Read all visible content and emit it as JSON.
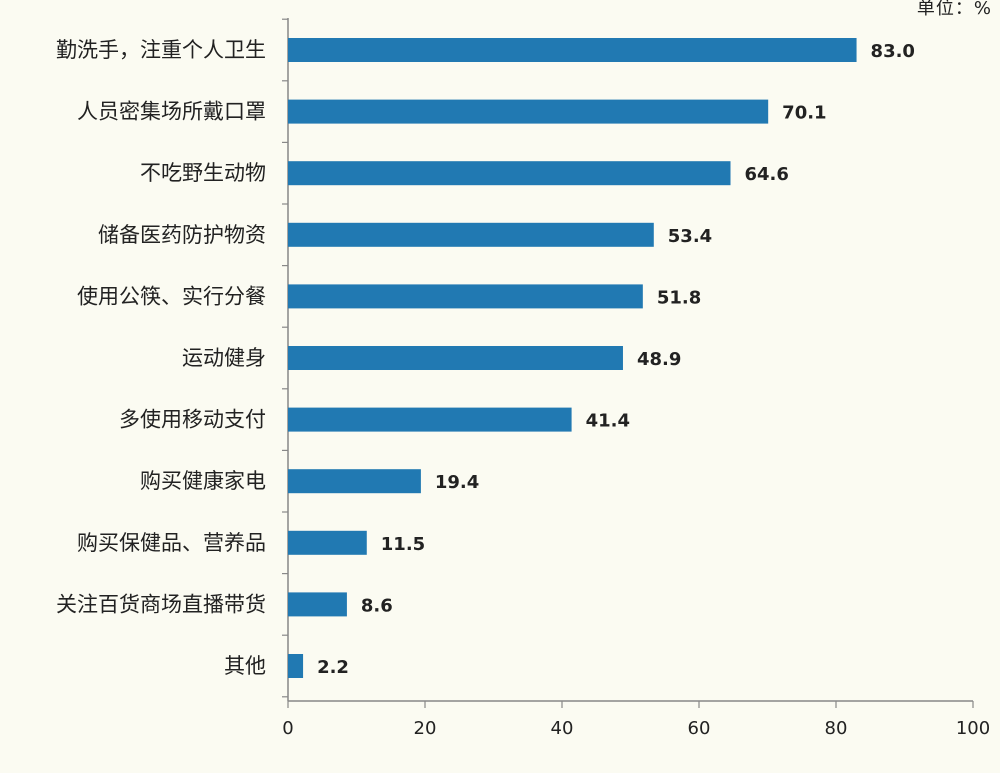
{
  "chart_data": {
    "type": "bar",
    "orientation": "horizontal",
    "unit": "单位：%",
    "categories": [
      "勤洗手，注重个人卫生",
      "人员密集场所戴口罩",
      "不吃野生动物",
      "储备医药防护物资",
      "使用公筷、实行分餐",
      "运动健身",
      "多使用移动支付",
      "购买健康家电",
      "购买保健品、营养品",
      "关注百货商场直播带货",
      "其他"
    ],
    "values": [
      83.0,
      70.1,
      64.6,
      53.4,
      51.8,
      48.9,
      41.4,
      19.4,
      11.5,
      8.6,
      2.2
    ],
    "value_labels": [
      "83.0",
      "70.1",
      "64.6",
      "53.4",
      "51.8",
      "48.9",
      "41.4",
      "19.4",
      "11.5",
      "8.6",
      "2.2"
    ],
    "xlim": [
      0,
      100
    ],
    "xticks": [
      "0",
      "20",
      "40",
      "60",
      "80",
      "100"
    ],
    "grid": false,
    "colors": {
      "bar": "#2179b2",
      "axis": "#888888",
      "text": "#222222",
      "background": "#fbfbf2"
    }
  }
}
